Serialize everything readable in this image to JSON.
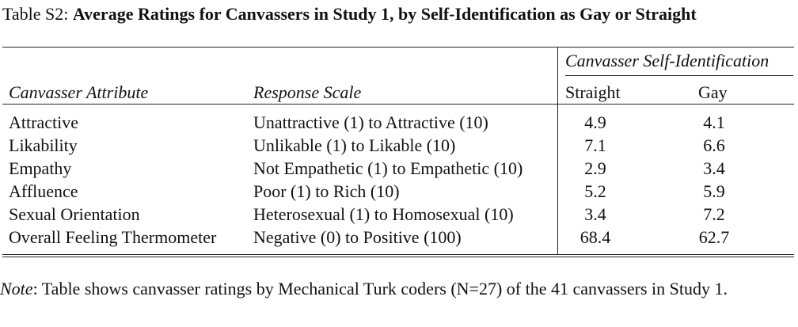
{
  "caption": {
    "label": "Table S2:",
    "title": "Average Ratings for Canvassers in Study 1, by Self-Identification as Gay or Straight"
  },
  "table": {
    "group_header": "Canvasser Self-Identification",
    "headers": {
      "attribute": "Canvasser Attribute",
      "scale": "Response Scale",
      "straight": "Straight",
      "gay": "Gay"
    },
    "rows": [
      {
        "attribute": "Attractive",
        "scale": "Unattractive (1) to Attractive (10)",
        "straight": "4.9",
        "gay": "4.1"
      },
      {
        "attribute": "Likability",
        "scale": "Unlikable (1) to Likable (10)",
        "straight": "7.1",
        "gay": "6.6"
      },
      {
        "attribute": "Empathy",
        "scale": "Not Empathetic (1) to Empathetic (10)",
        "straight": "2.9",
        "gay": "3.4"
      },
      {
        "attribute": "Affluence",
        "scale": "Poor (1) to Rich (10)",
        "straight": "5.2",
        "gay": "5.9"
      },
      {
        "attribute": "Sexual Orientation",
        "scale": "Heterosexual (1) to Homosexual (10)",
        "straight": "3.4",
        "gay": "7.2"
      },
      {
        "attribute": "Overall Feeling Thermometer",
        "scale": "Negative (0) to Positive (100)",
        "straight": "68.4",
        "gay": "62.7"
      }
    ]
  },
  "note": {
    "label": "Note",
    "text": ": Table shows canvasser ratings by Mechanical Turk coders (N=27) of the 41 canvassers in Study 1."
  }
}
